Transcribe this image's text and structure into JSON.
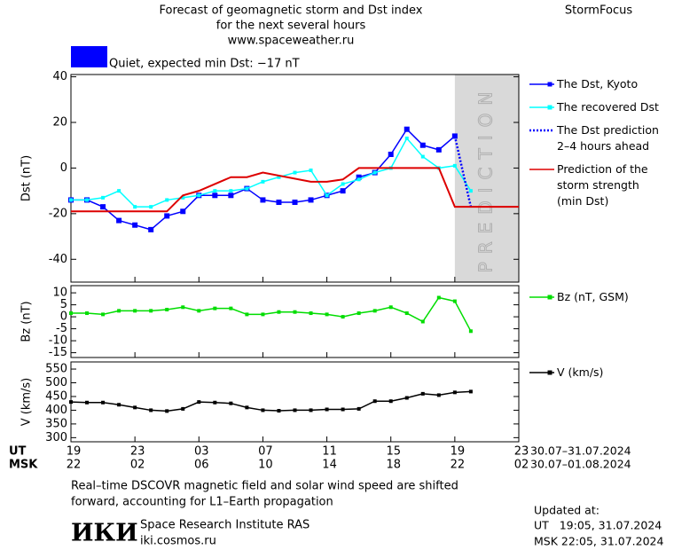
{
  "header": {
    "title_lines": [
      "Forecast of geomagnetic storm and Dst index",
      "for the next several hours",
      "www.spaceweather.ru"
    ],
    "brand": "StormFocus"
  },
  "status": {
    "text": "Quiet, expected min Dst: −17 nT",
    "color": "#0000ff"
  },
  "chart_data": [
    {
      "type": "line",
      "ylabel": "Dst (nT)",
      "xlim": [
        0,
        28
      ],
      "ylim": [
        -50,
        41
      ],
      "yticks": [
        40,
        20,
        0,
        -20,
        -40
      ],
      "prediction_zone": [
        24,
        28
      ],
      "prediction_label": "PREDICTION",
      "series": [
        {
          "name": "The Dst, Kyoto",
          "color": "#0000ff",
          "marker": "square",
          "x": [
            0,
            1,
            2,
            3,
            4,
            5,
            6,
            7,
            8,
            9,
            10,
            11,
            12,
            13,
            14,
            15,
            16,
            17,
            18,
            19,
            20,
            21,
            22,
            23,
            24
          ],
          "values": [
            -14,
            -14,
            -17,
            -23,
            -25,
            -27,
            -21,
            -19,
            -12,
            -12,
            -12,
            -9,
            -14,
            -15,
            -15,
            -14,
            -12,
            -10,
            -4,
            -2,
            6,
            17,
            10,
            8,
            14
          ]
        },
        {
          "name": "The recovered Dst",
          "color": "#00ffff",
          "marker": "small",
          "x": [
            0,
            1,
            2,
            3,
            4,
            5,
            6,
            7,
            8,
            9,
            10,
            11,
            12,
            13,
            14,
            15,
            16,
            17,
            18,
            19,
            20,
            21,
            22,
            23,
            24,
            25
          ],
          "values": [
            -14,
            -14,
            -13,
            -10,
            -17,
            -17,
            -14,
            -13,
            -12,
            -10,
            -10,
            -9,
            -6,
            -4,
            -2,
            -1,
            -12,
            -7,
            -5,
            -2,
            0,
            13,
            5,
            0,
            1,
            -10
          ]
        },
        {
          "name": "The Dst prediction\n2–4 hours ahead",
          "color": "#0000ff",
          "dotted": true,
          "x": [
            24,
            25
          ],
          "values": [
            14,
            -17
          ]
        },
        {
          "name": "Prediction of the\nstorm strength\n(min Dst)",
          "color": "#dd0000",
          "x": [
            0,
            6,
            7,
            8,
            10,
            11,
            12,
            15,
            16,
            17,
            18,
            23,
            24,
            28
          ],
          "values": [
            -19,
            -19,
            -12,
            -10,
            -4,
            -4,
            -2,
            -6,
            -6,
            -5,
            0,
            0,
            -17,
            -17
          ]
        }
      ]
    },
    {
      "type": "line",
      "ylabel": "Bz (nT)",
      "xlim": [
        0,
        28
      ],
      "ylim": [
        -17,
        13
      ],
      "yticks": [
        10,
        5,
        0,
        -5,
        -10,
        -15
      ],
      "series": [
        {
          "name": "Bz (nT, GSM)",
          "color": "#00dd00",
          "marker": "small",
          "x": [
            0,
            1,
            2,
            3,
            4,
            5,
            6,
            7,
            8,
            9,
            10,
            11,
            12,
            13,
            14,
            15,
            16,
            17,
            18,
            19,
            20,
            21,
            22,
            23,
            24,
            25
          ],
          "values": [
            1.5,
            1.5,
            1,
            2.5,
            2.5,
            2.5,
            3,
            4,
            2.5,
            3.5,
            3.5,
            1,
            1,
            2,
            2,
            1.5,
            1,
            0,
            1.5,
            2.5,
            4,
            1.5,
            -2,
            8,
            6.5,
            -6
          ]
        }
      ]
    },
    {
      "type": "line",
      "ylabel": "V (km/s)",
      "xlim": [
        0,
        28
      ],
      "ylim": [
        285,
        576
      ],
      "yticks": [
        550,
        500,
        450,
        400,
        350,
        300
      ],
      "xticks": [
        {
          "value": 0,
          "label": "19"
        },
        {
          "value": 4,
          "label": "23"
        },
        {
          "value": 8,
          "label": "03"
        },
        {
          "value": 12,
          "label": "07"
        },
        {
          "value": 16,
          "label": "11"
        },
        {
          "value": 20,
          "label": "15"
        },
        {
          "value": 24,
          "label": "19"
        },
        {
          "value": 28,
          "label": "23"
        }
      ],
      "x2ticks": [
        {
          "value": 0,
          "label": "22"
        },
        {
          "value": 4,
          "label": "02"
        },
        {
          "value": 8,
          "label": "06"
        },
        {
          "value": 12,
          "label": "10"
        },
        {
          "value": 16,
          "label": "14"
        },
        {
          "value": 20,
          "label": "18"
        },
        {
          "value": 24,
          "label": "22"
        },
        {
          "value": 28,
          "label": "02"
        }
      ],
      "xaxis_name": "UT",
      "x2axis_name": "MSK",
      "xperiod": "30.07–31.07.2024",
      "x2period": "30.07–01.08.2024",
      "series": [
        {
          "name": "V (km/s)",
          "color": "#000000",
          "marker": "small",
          "x": [
            0,
            1,
            2,
            3,
            4,
            5,
            6,
            7,
            8,
            9,
            10,
            11,
            12,
            13,
            14,
            15,
            16,
            17,
            18,
            19,
            20,
            21,
            22,
            23,
            24,
            25
          ],
          "values": [
            430,
            428,
            428,
            420,
            410,
            400,
            397,
            405,
            430,
            428,
            425,
            410,
            400,
            398,
            400,
            400,
            403,
            403,
            405,
            433,
            433,
            445,
            460,
            455,
            465,
            468
          ]
        }
      ]
    }
  ],
  "footer": {
    "note_lines": [
      "Real–time DSCOVR magnetic field and solar wind speed are shifted",
      "forward, accounting for L1–Earth propagation"
    ],
    "logo": "ИКИ",
    "institute": "Space Research Institute RAS",
    "url": "iki.cosmos.ru",
    "updated_lines": [
      "Updated at:",
      "UT   19:05, 31.07.2024",
      "MSK 22:05, 31.07.2024"
    ]
  }
}
